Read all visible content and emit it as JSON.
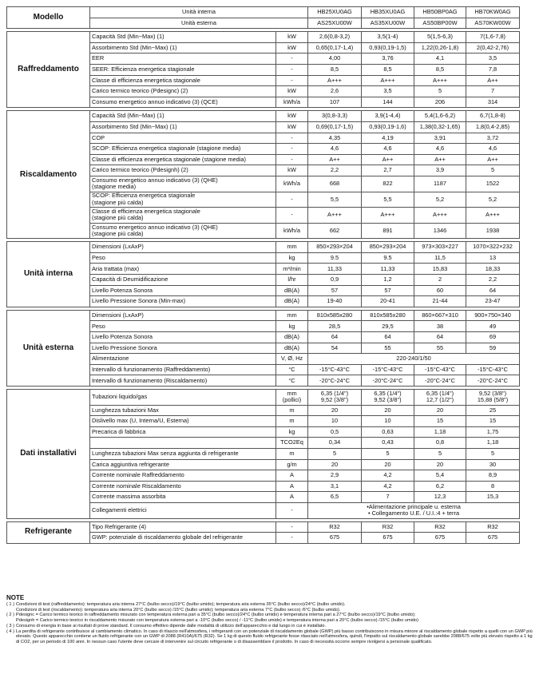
{
  "table": {
    "header": {
      "label": "Modello",
      "rows": [
        [
          "Unità interna",
          "HB25XU0AG",
          "HB35XU0AG",
          "HB50BP0AG",
          "HB70KW0AG"
        ],
        [
          "Unità esterna",
          "AS25XU00W",
          "AS35XU00W",
          "AS50BP00W",
          "AS70KW00W"
        ]
      ]
    },
    "sections": [
      {
        "name": "Raffreddamento",
        "rows": [
          {
            "param": "Capacità Std (Min~Max) (1)",
            "unit": "kW",
            "values": [
              "2,6(0,8-3,2)",
              "3,5(1-4)",
              "5(1,5-6,3)",
              "7(1,6-7,8)"
            ]
          },
          {
            "param": "Assorbimento Std (Min~Max) (1)",
            "unit": "kW",
            "values": [
              "0,65(0,17-1,4)",
              "0,93(0,19-1,5)",
              "1,22(0,26-1,8)",
              "2(0,42-2,76)"
            ]
          },
          {
            "param": "EER",
            "unit": "-",
            "values": [
              "4,00",
              "3,76",
              "4,1",
              "3,5"
            ]
          },
          {
            "param": "SEER: Efficienza energetica stagionale",
            "unit": "-",
            "values": [
              "8,5",
              "8,5",
              "8,5",
              "7,8"
            ]
          },
          {
            "param": "Classe di efficienza energetica stagionale",
            "unit": "-",
            "values": [
              "A+++",
              "A+++",
              "A+++",
              "A++"
            ]
          },
          {
            "param": "Carico termico teorico (Pdesignc) (2)",
            "unit": "kW",
            "values": [
              "2,6",
              "3,5",
              "5",
              "7"
            ]
          },
          {
            "param": "Consumo energetico annuo indicativo (3) (QCE)",
            "unit": "kWh/a",
            "values": [
              "107",
              "144",
              "206",
              "314"
            ]
          }
        ]
      },
      {
        "name": "Riscaldamento",
        "rows": [
          {
            "param": "Capacità Std (Min~Max) (1)",
            "unit": "kW",
            "values": [
              "3(0,8-3,3)",
              "3,9(1-4,4)",
              "5,4(1,6-6,2)",
              "6,7(1,8-8)"
            ]
          },
          {
            "param": "Assorbimento Std (Min~Max) (1)",
            "unit": "kW",
            "values": [
              "0,69(0,17-1,5)",
              "0,93(0,19-1,6)",
              "1,38(0,32-1,65)",
              "1,8(0,4-2,85)"
            ]
          },
          {
            "param": "COP",
            "unit": "-",
            "values": [
              "4,35",
              "4,19",
              "3,91",
              "3,72"
            ]
          },
          {
            "param": "SCOP: Efficienza energetica stagionale (stagione media)",
            "unit": "-",
            "values": [
              "4,6",
              "4,6",
              "4,6",
              "4,6"
            ]
          },
          {
            "param": "Classe di efficienza energetica stagionale (stagione media)",
            "unit": "-",
            "values": [
              "A++",
              "A++",
              "A++",
              "A++"
            ]
          },
          {
            "param": "Carico termico teorico (Pdesignh) (2)",
            "unit": "kW",
            "values": [
              "2,2",
              "2,7",
              "3,9",
              "5"
            ]
          },
          {
            "param": "Consumo energetico annuo indicativo (3) (QHE)\n(stagione media)",
            "unit": "kWh/a",
            "values": [
              "668",
              "822",
              "1187",
              "1522"
            ]
          },
          {
            "param": "SCOP: Efficienza energetica stagionale\n(stagione più calda)",
            "unit": "-",
            "values": [
              "5,5",
              "5,5",
              "5,2",
              "5,2"
            ]
          },
          {
            "param": "Classe di efficienza energetica stagionale\n(stagione più calda)",
            "unit": "-",
            "values": [
              "A+++",
              "A+++",
              "A+++",
              "A+++"
            ]
          },
          {
            "param": "Consumo energetico annuo indicativo (3) (QHE)\n(stagione più calda)",
            "unit": "kWh/a",
            "values": [
              "662",
              "891",
              "1346",
              "1938"
            ]
          }
        ]
      },
      {
        "name": "Unità interna",
        "rows": [
          {
            "param": "Dimensioni (LxAxP)",
            "unit": "mm",
            "values": [
              "850×293×204",
              "850×293×204",
              "973×303×227",
              "1070×322×232"
            ]
          },
          {
            "param": "Peso",
            "unit": "kg",
            "values": [
              "9.5",
              "9.5",
              "11,5",
              "13"
            ]
          },
          {
            "param": "Aria trattata (max)",
            "unit": "m³/min",
            "values": [
              "11,33",
              "11,33",
              "15,83",
              "18,33"
            ]
          },
          {
            "param": "Capacità di Deumidificazione",
            "unit": "l/hr",
            "values": [
              "0,9",
              "1,2",
              "2",
              "2,2"
            ]
          },
          {
            "param": "Livello Potenza Sonora",
            "unit": "dB(A)",
            "values": [
              "57",
              "57",
              "60",
              "64"
            ]
          },
          {
            "param": "Livello Pressione Sonora (Min-max)",
            "unit": "dB(A)",
            "values": [
              "19-40",
              "20-41",
              "21-44",
              "23-47"
            ]
          }
        ]
      },
      {
        "name": "Unità esterna",
        "rows": [
          {
            "param": "Dimensioni (LxAxP)",
            "unit": "mm",
            "values": [
              "810x585x280",
              "810x585x280",
              "860×667×310",
              "900×750×340"
            ]
          },
          {
            "param": "Peso",
            "unit": "kg",
            "values": [
              "28,5",
              "29,5",
              "38",
              "49"
            ]
          },
          {
            "param": "Livello Potenza Sonora",
            "unit": "dB(A)",
            "values": [
              "64",
              "64",
              "64",
              "69"
            ]
          },
          {
            "param": "Livello Pressione Sonora",
            "unit": "dB(A)",
            "values": [
              "54",
              "55",
              "55",
              "59"
            ]
          },
          {
            "param": "Alimentazione",
            "unit": "V, Ø, Hz",
            "values": [
              "220-240/1/50"
            ]
          },
          {
            "param": "Intervallo di funzionamento (Raffreddamento)",
            "unit": "°C",
            "values": [
              "-15°C-43°C",
              "-15°C-43°C",
              "-15°C-43°C",
              "-15°C-43°C"
            ]
          },
          {
            "param": "Intervallo di funzionamento (Riscaldamento)",
            "unit": "°C",
            "values": [
              "-20°C-24°C",
              "-20°C-24°C",
              "-20°C-24°C",
              "-20°C-24°C"
            ]
          }
        ]
      },
      {
        "name": "Dati installativi",
        "rows": [
          {
            "param": "Tubazioni liquido/gas",
            "unit": "mm\n(pollici)",
            "values": [
              "6,35 (1/4\")\n9,52 (3/8\")",
              "6,35 (1/4\")\n9,52 (3/8\")",
              "6,35 (1/4\")\n12,7 (1/2\")",
              "9,52 (3/8\")\n15,88 (5/8\")"
            ]
          },
          {
            "param": "Lunghezza tubazioni Max",
            "unit": "m",
            "values": [
              "20",
              "20",
              "20",
              "25"
            ]
          },
          {
            "param": "Dislivello max (U, Interna/U, Esterna)",
            "unit": "m",
            "values": [
              "10",
              "10",
              "15",
              "15"
            ]
          },
          {
            "param": "Precarica di fabbrica",
            "unit": "kg",
            "values": [
              "0,5",
              "0,63",
              "1,18",
              "1,75"
            ]
          },
          {
            "param": null,
            "unit": "TCO2Eq",
            "values": [
              "0,34",
              "0,43",
              "0,8",
              "1,18"
            ]
          },
          {
            "param": "Lunghezza tubazioni Max senza aggiunta di refrigerante",
            "unit": "m",
            "values": [
              "5",
              "5",
              "5",
              "5"
            ]
          },
          {
            "param": "Carica aggiuntiva refrigerante",
            "unit": "g/m",
            "values": [
              "20",
              "20",
              "20",
              "30"
            ]
          },
          {
            "param": "Corrente nominale Raffreddamento",
            "unit": "A",
            "values": [
              "2,9",
              "4,2",
              "5,4",
              "8,9"
            ]
          },
          {
            "param": "Corrente nominale Riscaldamento",
            "unit": "A",
            "values": [
              "3,1",
              "4,2",
              "6,2",
              "8"
            ]
          },
          {
            "param": "Corrente massima assorbita",
            "unit": "A",
            "values": [
              "6,5",
              "7",
              "12,3",
              "15,3"
            ]
          },
          {
            "param": "Collegamenti elettrici",
            "unit": "-",
            "values": [
              "•Alimentazione principale u. esterna\n• Collegamento U.E. / U.I.:4 + terra"
            ]
          }
        ]
      },
      {
        "name": "Refrigerante",
        "rows": [
          {
            "param": "Tipo Refrigerante (4)",
            "unit": "-",
            "values": [
              "R32",
              "R32",
              "R32",
              "R32"
            ]
          },
          {
            "param": "GWP: potenziale di riscaldamento globale del refrigerante",
            "unit": "-",
            "values": [
              "675",
              "675",
              "675",
              "675"
            ]
          }
        ]
      }
    ]
  },
  "notes": {
    "title": "NOTE",
    "items": [
      {
        "marker": "( 1 )",
        "lines": [
          "Condizioni di test (raffreddamento): temperatura aria interna 27°C (bulbo secco)/19°C (bulbo umido); temperatura aria esterna 35°C (bulbo secco)/24°C (bulbo umido).",
          "Condizioni di test (riscaldamento): temperatura aria interna 20°C (bulbo secco) /15°C (bulbo umido); temperatura aria esterna 7°C (bulbo secco) /6°C (bulbo umido)."
        ]
      },
      {
        "marker": "( 2 )",
        "lines": [
          "Pdesignc = Carico termico teorico in raffreddamento misurato con temperatura esterna pari a 35°C (bulbo secco)/24°C (bulbo umido) e temperatura interna pari a 27°C (bulbo secco)/19°C (bulbo umido);",
          "Pdesignh = Carico termico teorico in riscaldamento misurato con temperatura esterna pari a -10°C (bulbo secco) / -11°C (bulbo umido) e temperatura interna pari a 20°C (bulbo secco) /15°C (bulbo umido)"
        ]
      },
      {
        "marker": "( 3 )",
        "lines": [
          "Consumo di energia in base ai risultati di prove standard. Il consumo effettivo dipende dalle modalità di utilizzo dell'apparecchio e dal luogo in cui è installato."
        ]
      },
      {
        "marker": "( 4 )",
        "lines": [
          "La perdita di refrigerante contribuisce al cambiamento climatico. In caso di rilascio nell'atmosfera, i refrigeranti con un potenziale di riscaldamento globale (GWP) più basso contribuiscono in misura minore al riscaldamento globale rispetto a quelli con un GWP più elevato. Questo apparecchio contiene un fluido refrigerante con un GWP di 2088 (R410A)/675 (R32). Se 1 kg di questo fluido refrigerante fosse rilasciato nell'atmosfera, quindi, l'impatto sul riscaldamento globale sarebbe 2088/675 volte più elevato rispetto a 1 kg di CO2, per un periodo di 100 anni. In nessun caso l'utente deve cercare di intervenire sul circuito refrigerante o di disassemblare il prodotto. In caso di necessità occorre sempre rivolgersi a personale qualificato."
        ]
      }
    ]
  }
}
